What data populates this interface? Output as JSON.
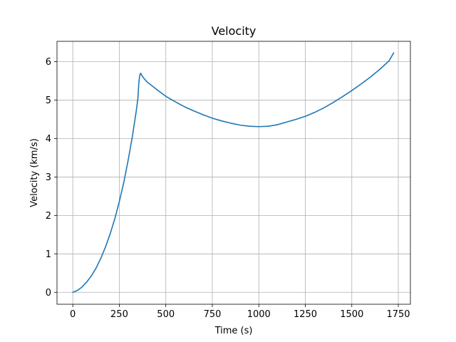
{
  "chart_data": {
    "type": "line",
    "title": "Velocity",
    "xlabel": "Time (s)",
    "ylabel": "Velocity (km/s)",
    "xlim": [
      -85,
      1815
    ],
    "ylim": [
      -0.31,
      6.53
    ],
    "xticks": [
      0,
      250,
      500,
      750,
      1000,
      1250,
      1500,
      1750
    ],
    "yticks": [
      0,
      1,
      2,
      3,
      4,
      5,
      6
    ],
    "grid": true,
    "legend": false,
    "series": [
      {
        "color": "#1f77b4",
        "x": [
          0,
          25,
          50,
          75,
          100,
          125,
          150,
          175,
          200,
          225,
          250,
          275,
          300,
          320,
          340,
          350,
          355,
          360,
          365,
          370,
          380,
          400,
          450,
          500,
          550,
          600,
          650,
          700,
          750,
          800,
          850,
          900,
          950,
          1000,
          1050,
          1100,
          1150,
          1200,
          1250,
          1300,
          1350,
          1400,
          1450,
          1500,
          1550,
          1600,
          1650,
          1700,
          1725
        ],
        "y": [
          0,
          0.05,
          0.14,
          0.27,
          0.43,
          0.63,
          0.88,
          1.17,
          1.51,
          1.9,
          2.36,
          2.88,
          3.5,
          4.05,
          4.68,
          5.05,
          5.45,
          5.65,
          5.7,
          5.65,
          5.58,
          5.47,
          5.28,
          5.1,
          4.96,
          4.83,
          4.72,
          4.62,
          4.53,
          4.46,
          4.4,
          4.35,
          4.32,
          4.31,
          4.32,
          4.36,
          4.43,
          4.5,
          4.58,
          4.68,
          4.8,
          4.94,
          5.09,
          5.25,
          5.42,
          5.6,
          5.8,
          6.02,
          6.23
        ]
      }
    ]
  }
}
